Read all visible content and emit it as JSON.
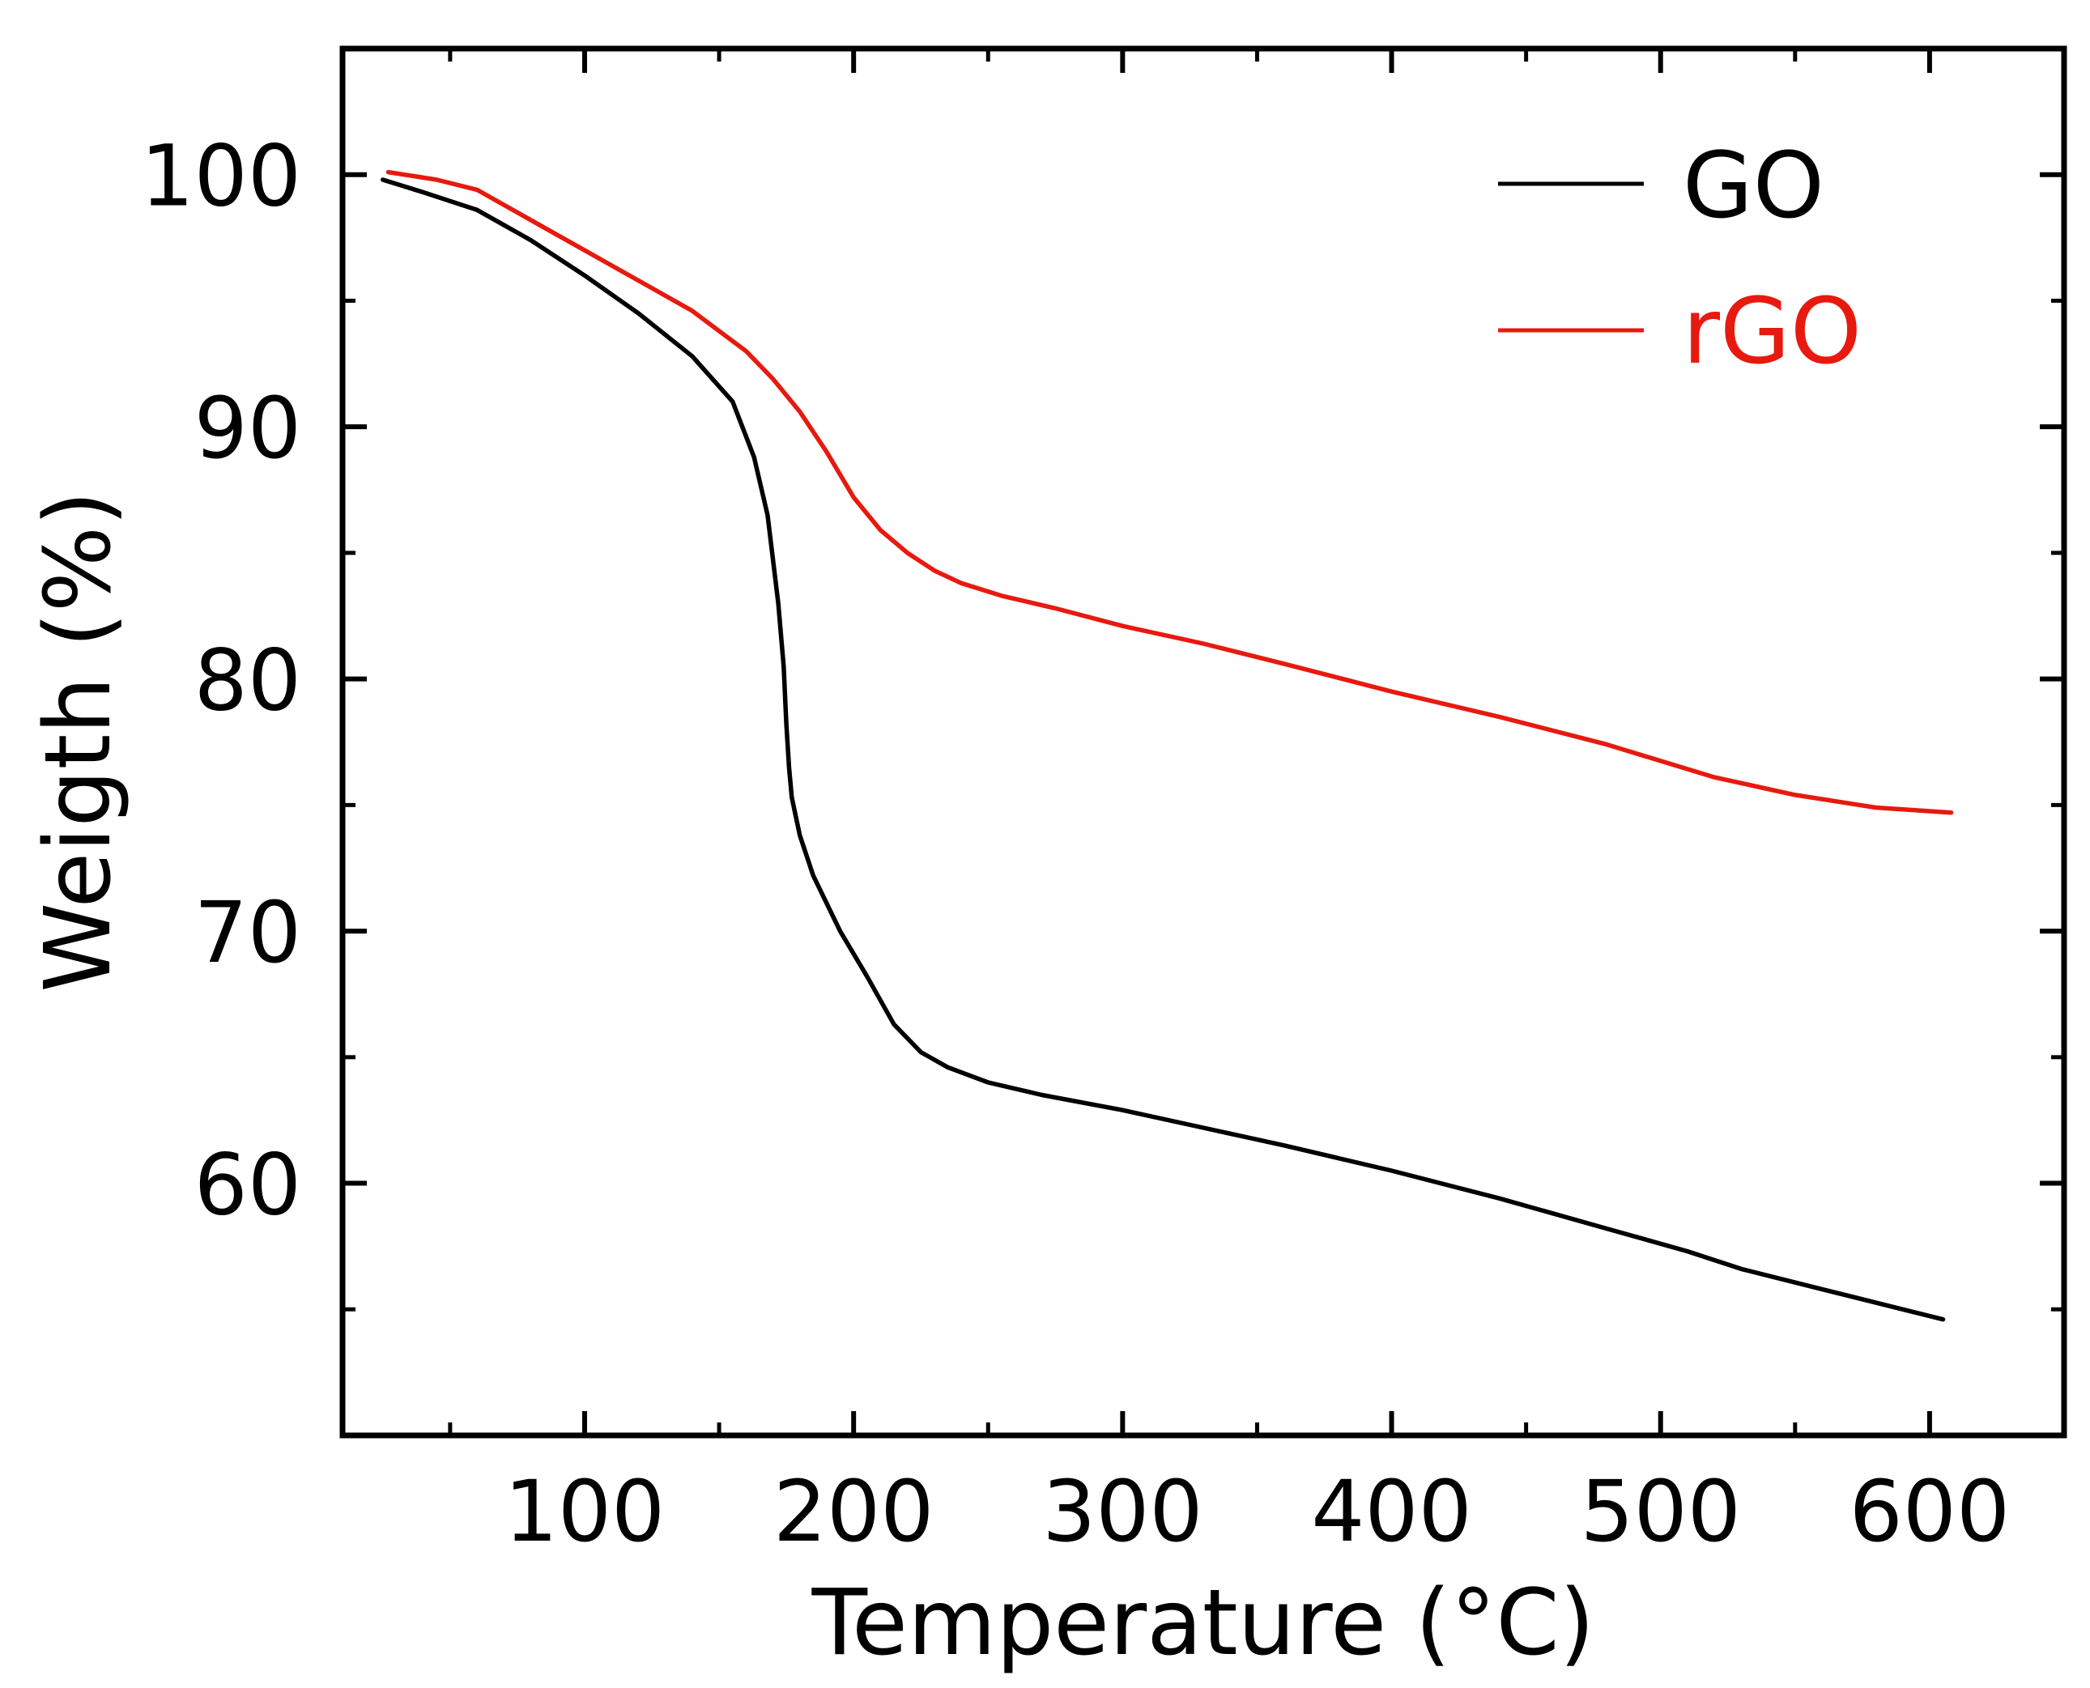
{
  "chart_data": {
    "type": "line",
    "title": "",
    "xlabel": "Temperature (°C)",
    "ylabel": "Weigth (%)",
    "xlim": [
      10,
      650
    ],
    "ylim": [
      50,
      105
    ],
    "xticks": [
      100,
      200,
      300,
      400,
      500,
      600
    ],
    "xtick_labels": [
      "100",
      "200",
      "300",
      "400",
      "500",
      "600"
    ],
    "xminor": [
      50,
      150,
      250,
      350,
      450,
      550
    ],
    "yticks": [
      60,
      70,
      80,
      90,
      100
    ],
    "ytick_labels": [
      "60",
      "70",
      "80",
      "90",
      "100"
    ],
    "yminor": [
      55,
      65,
      75,
      85,
      95
    ],
    "grid": false,
    "legend_position": "top-right",
    "series": [
      {
        "name": "GO",
        "color": "#000000",
        "x": [
          25,
          40,
          60,
          80,
          100,
          120,
          140,
          155,
          163,
          168,
          172,
          174,
          175,
          176,
          177,
          180,
          185,
          195,
          205,
          215,
          225,
          235,
          250,
          270,
          300,
          330,
          360,
          400,
          440,
          480,
          510,
          530,
          560,
          590,
          605
        ],
        "y": [
          99.8,
          99.3,
          98.6,
          97.4,
          96.0,
          94.5,
          92.8,
          91.0,
          88.8,
          86.5,
          83.0,
          80.5,
          78.2,
          76.5,
          75.3,
          73.8,
          72.2,
          70.0,
          68.2,
          66.3,
          65.2,
          64.6,
          64.0,
          63.5,
          62.9,
          62.2,
          61.5,
          60.5,
          59.4,
          58.2,
          57.3,
          56.6,
          55.8,
          55.0,
          54.6
        ]
      },
      {
        "name": "rGO",
        "color": "#e8190e",
        "x": [
          27,
          45,
          60,
          80,
          100,
          120,
          140,
          160,
          170,
          180,
          190,
          200,
          210,
          220,
          230,
          240,
          255,
          275,
          300,
          330,
          360,
          400,
          440,
          480,
          520,
          550,
          580,
          608
        ],
        "y": [
          100.1,
          99.8,
          99.4,
          98.2,
          97.0,
          95.8,
          94.6,
          93.0,
          91.9,
          90.6,
          89.0,
          87.2,
          85.9,
          85.0,
          84.3,
          83.8,
          83.3,
          82.8,
          82.1,
          81.4,
          80.6,
          79.5,
          78.5,
          77.4,
          76.1,
          75.4,
          74.9,
          74.7
        ]
      }
    ]
  }
}
